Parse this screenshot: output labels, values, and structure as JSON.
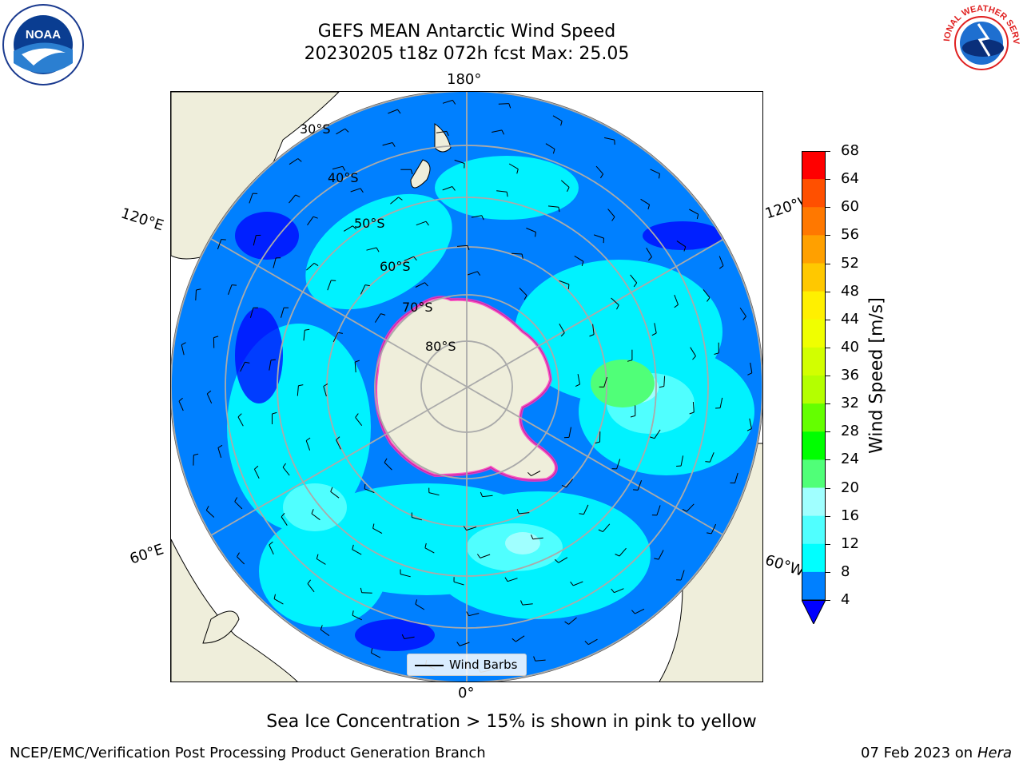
{
  "title_line1": "GEFS MEAN Antarctic Wind Speed",
  "title_line2": "20230205 t18z 072h fcst   Max: 25.05",
  "longitude_labels": {
    "top": "180°",
    "bottom": "0°",
    "upper_left": "120°E",
    "upper_right": "120°W",
    "lower_left": "60°E",
    "lower_right": "60°W"
  },
  "latitude_labels": [
    "30°S",
    "40°S",
    "50°S",
    "60°S",
    "70°S",
    "80°S"
  ],
  "legend": {
    "label": "Wind Barbs"
  },
  "colorbar": {
    "label": "Wind Speed [m/s]",
    "ticks": [
      "68",
      "64",
      "60",
      "56",
      "52",
      "48",
      "44",
      "40",
      "36",
      "32",
      "28",
      "24",
      "20",
      "16",
      "12",
      "8",
      "4"
    ],
    "colors": [
      "#ff0000",
      "#ff2800",
      "#ff5000",
      "#ff7800",
      "#ffa000",
      "#ffc800",
      "#fff000",
      "#f0ff00",
      "#d2ff00",
      "#b4ff00",
      "#64ff00",
      "#00ff00",
      "#50ff78",
      "#a0ffff",
      "#50ffff",
      "#00ffff",
      "#0080ff"
    ],
    "extend_color": "#0000ff"
  },
  "logos": {
    "noaa": "NOAA",
    "nws": "NATIONAL WEATHER SERVICE"
  },
  "footnote": "Sea Ice Concentration > 15% is shown in pink to yellow",
  "credit": "NCEP/EMC/Verification Post Processing Product Generation Branch",
  "date_text": "07 Feb 2023 on",
  "host": "Hera"
}
